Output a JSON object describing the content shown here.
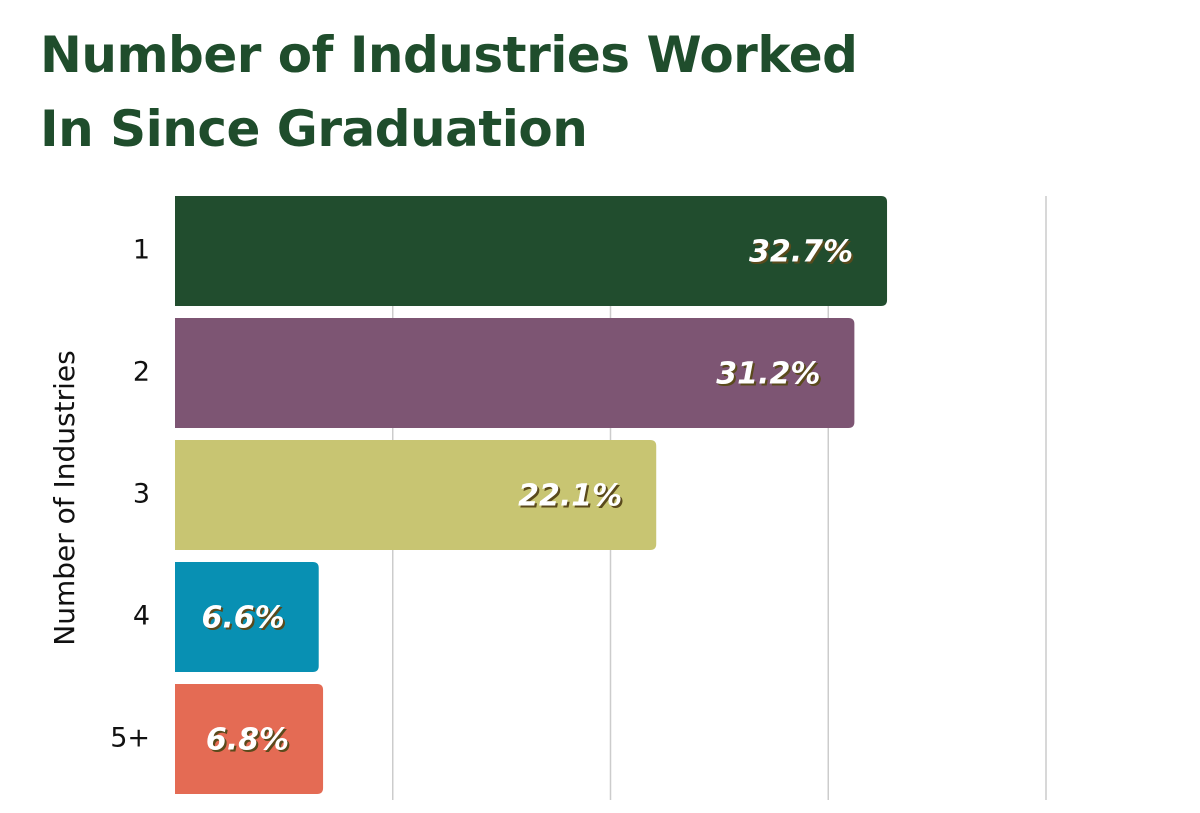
{
  "chart_data": {
    "type": "bar",
    "orientation": "horizontal",
    "title": "Number of Industries Worked In Since Graduation",
    "y_label": "Number of Industries",
    "categories": [
      "1",
      "2",
      "3",
      "4",
      "5+"
    ],
    "values": [
      32.7,
      31.2,
      22.1,
      6.6,
      6.8
    ],
    "value_labels": [
      "32.7%",
      "31.2%",
      "22.1%",
      "6.6%",
      "6.8%"
    ],
    "colors": [
      "#214d2e",
      "#7d5573",
      "#c8c572",
      "#0890b3",
      "#e46b54"
    ],
    "xlim": [
      0,
      40
    ],
    "xticks": [
      0,
      10,
      20,
      30,
      40
    ],
    "grid": true
  }
}
